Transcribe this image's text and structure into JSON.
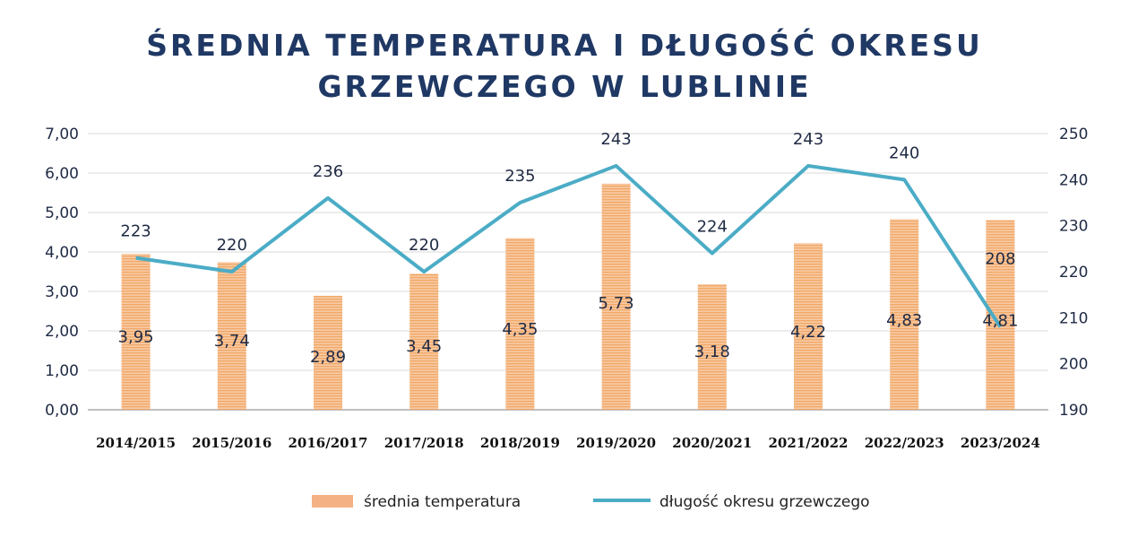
{
  "chart_data": {
    "type": "bar",
    "title_line1": "ŚREDNIA TEMPERATURA I DŁUGOŚĆ OKRESU",
    "title_line2": "GRZEWCZEGO W LUBLINIE",
    "categories": [
      "2014/2015",
      "2015/2016",
      "2016/2017",
      "2017/2018",
      "2018/2019",
      "2019/2020",
      "2020/2021",
      "2021/2022",
      "2022/2023",
      "2023/2024"
    ],
    "series": [
      {
        "name": "średnia temperatura",
        "type": "bar",
        "axis": "left",
        "color": "#f4b183",
        "values": [
          3.95,
          3.74,
          2.89,
          3.45,
          4.35,
          5.73,
          3.18,
          4.22,
          4.83,
          4.81
        ],
        "labels": [
          "3,95",
          "3,74",
          "2,89",
          "3,45",
          "4,35",
          "5,73",
          "3,18",
          "4,22",
          "4,83",
          "4,81"
        ]
      },
      {
        "name": "długość okresu grzewczego",
        "type": "line",
        "axis": "right",
        "color": "#4bacc6",
        "values": [
          223,
          220,
          236,
          220,
          235,
          243,
          224,
          243,
          240,
          208
        ],
        "labels": [
          "223",
          "220",
          "236",
          "220",
          "235",
          "243",
          "224",
          "243",
          "240",
          "208"
        ]
      }
    ],
    "y_left": {
      "min": 0,
      "max": 7,
      "step": 1,
      "tick_labels": [
        "0,00",
        "1,00",
        "2,00",
        "3,00",
        "4,00",
        "5,00",
        "6,00",
        "7,00"
      ]
    },
    "y_right": {
      "min": 190,
      "max": 250,
      "step": 10,
      "tick_labels": [
        "190",
        "200",
        "210",
        "220",
        "230",
        "240",
        "250"
      ]
    },
    "grid": true,
    "legend_position": "bottom"
  }
}
